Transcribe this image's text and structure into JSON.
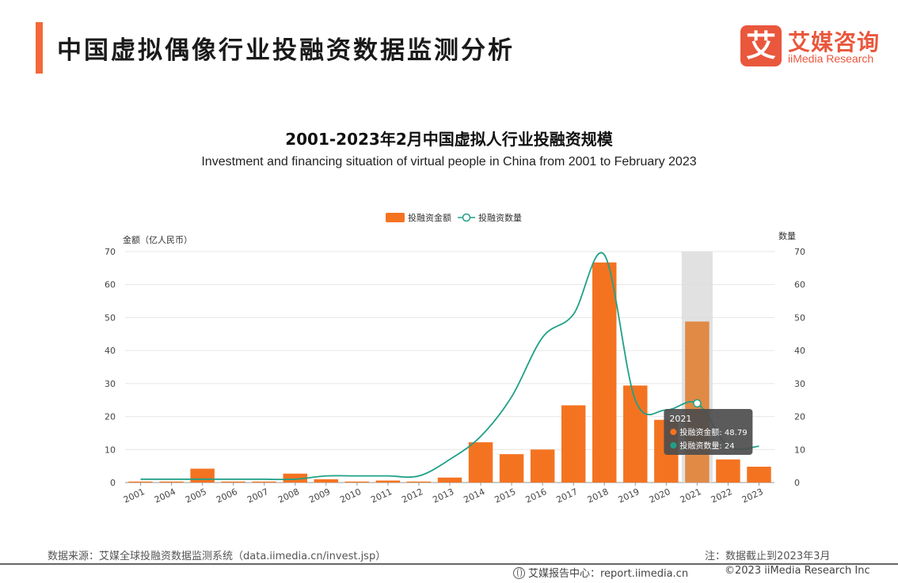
{
  "header": {
    "title": "中国虚拟偶像行业投融资数据监测分析",
    "logo_cn": "艾媒咨询",
    "logo_en": "iiMedia Research",
    "logo_mark": "艾"
  },
  "footer": {
    "source": "数据来源：艾媒全球投融资数据监测系统（data.iimedia.cn/invest.jsp）",
    "note": "注：数据截止到2023年3月",
    "report_center": "艾媒报告中心：report.iimedia.cn",
    "copyright": "©2023  iiMedia Research  Inc"
  },
  "colors": {
    "accent": "#f2683a",
    "bar": "#f47321",
    "bar_highlight": "#e08a45",
    "line": "#1fa187",
    "tooltip_bg": "#4d4d4d"
  },
  "chart_data": {
    "type": "bar",
    "title": "2001-2023年2月中国虚拟人行业投融资规模",
    "subtitle": "Investment and financing situation of virtual people in China from 2001 to February 2023",
    "ylabel_left": "金额（亿人民币）",
    "ylabel_right": "数量",
    "ylim": [
      0,
      70
    ],
    "yticks": [
      0,
      10,
      20,
      30,
      40,
      50,
      60,
      70
    ],
    "legend_position": "top-center",
    "categories": [
      "2001",
      "2004",
      "2005",
      "2006",
      "2007",
      "2008",
      "2009",
      "2010",
      "2011",
      "2012",
      "2013",
      "2014",
      "2015",
      "2016",
      "2017",
      "2018",
      "2019",
      "2020",
      "2021",
      "2022",
      "2023"
    ],
    "series": [
      {
        "name": "投融资金额",
        "kind": "bar",
        "axis": "left",
        "values": [
          0.3,
          0.3,
          4.2,
          0.3,
          0.3,
          2.7,
          1.0,
          0.3,
          0.6,
          0.3,
          1.5,
          12.2,
          8.6,
          10.0,
          23.4,
          66.7,
          29.4,
          19.0,
          48.79,
          7.0,
          4.8
        ]
      },
      {
        "name": "投融资数量",
        "kind": "line",
        "axis": "right",
        "values": [
          1,
          1,
          1,
          1,
          1,
          1,
          2,
          2,
          2,
          2,
          7,
          14,
          26,
          44,
          51,
          69,
          25,
          22,
          24,
          11,
          11
        ]
      }
    ],
    "highlight": {
      "category": "2021",
      "title": "2021",
      "rows": [
        {
          "label": "投融资金额",
          "value": "48.79"
        },
        {
          "label": "投融资数量",
          "value": "24"
        }
      ]
    }
  }
}
